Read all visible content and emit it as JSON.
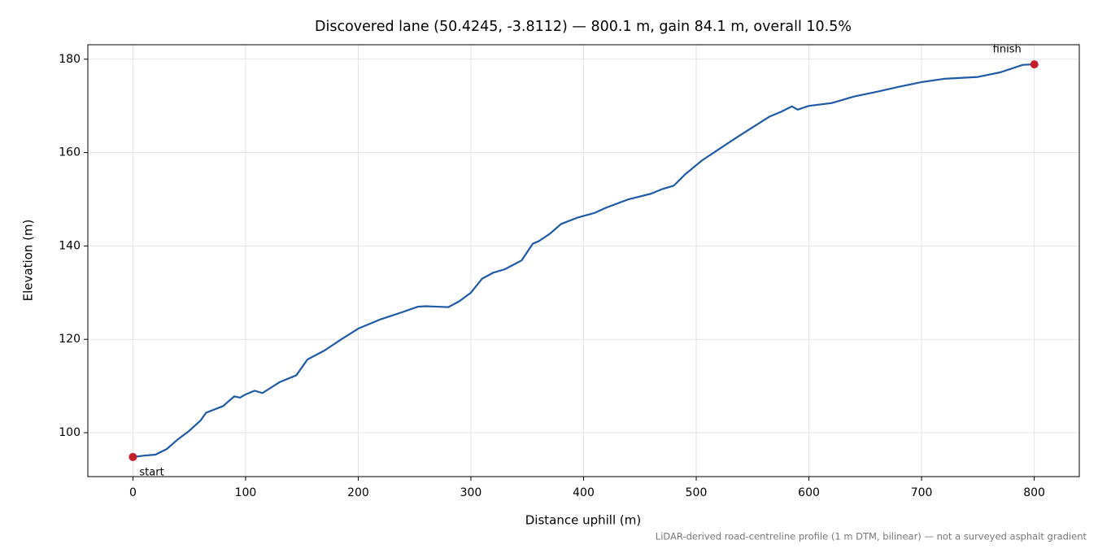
{
  "chart_data": {
    "type": "line",
    "title": "Discovered lane (50.4245, -3.8112) — 800.1 m, gain 84.1 m, overall 10.5%",
    "x_label": "Distance uphill (m)",
    "y_label": "Elevation (m)",
    "footnote": "LiDAR-derived road-centreline profile (1 m DTM, bilinear) — not a surveyed asphalt gradient",
    "x": [
      0,
      10,
      20,
      30,
      40,
      50,
      60,
      65,
      80,
      90,
      95,
      100,
      108,
      115,
      130,
      145,
      155,
      170,
      185,
      200,
      220,
      240,
      253,
      260,
      270,
      280,
      290,
      300,
      310,
      320,
      330,
      345,
      355,
      360,
      370,
      380,
      395,
      410,
      420,
      440,
      460,
      470,
      480,
      490,
      505,
      520,
      535,
      550,
      565,
      575,
      585,
      590,
      600,
      620,
      640,
      660,
      680,
      700,
      720,
      750,
      770,
      790,
      800.1
    ],
    "series": [
      {
        "name": "Elevation",
        "color": "#1f5aa6",
        "values": [
          94.8,
          95.1,
          95.3,
          96.5,
          98.6,
          100.4,
          102.6,
          104.3,
          105.7,
          107.8,
          107.5,
          108.2,
          109.0,
          108.5,
          110.8,
          112.3,
          115.7,
          117.6,
          120.0,
          122.3,
          124.3,
          125.9,
          127.0,
          127.1,
          127.0,
          126.9,
          128.2,
          130.0,
          133.0,
          134.3,
          135.0,
          136.9,
          140.5,
          141.0,
          142.6,
          144.7,
          146.1,
          147.1,
          148.2,
          150.0,
          151.2,
          152.2,
          152.9,
          155.3,
          158.3,
          160.7,
          163.1,
          165.4,
          167.7,
          168.7,
          169.9,
          169.2,
          170.0,
          170.6,
          172.0,
          173.0,
          174.1,
          175.1,
          175.8,
          176.2,
          177.2,
          178.8,
          178.9
        ]
      }
    ],
    "annotations": [
      {
        "label": "start",
        "x": 0,
        "y": 94.8
      },
      {
        "label": "finish",
        "x": 800.1,
        "y": 178.9
      }
    ],
    "marker_color": "#c41e2a",
    "xlim": [
      -40,
      840
    ],
    "ylim": [
      90.6,
      183.1
    ],
    "xticks": [
      0,
      100,
      200,
      300,
      400,
      500,
      600,
      700,
      800
    ],
    "yticks": [
      100,
      120,
      140,
      160,
      180
    ],
    "grid": true
  }
}
